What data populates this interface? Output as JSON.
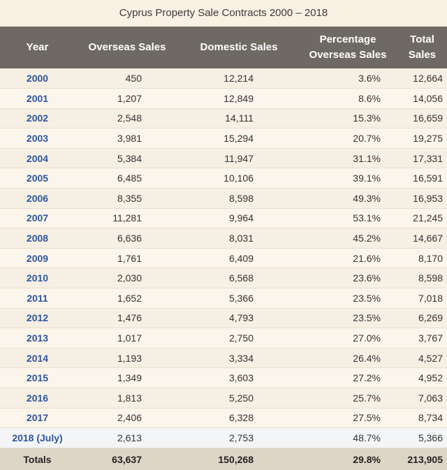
{
  "title": "Cyprus Property Sale Contracts 2000 – 2018",
  "headers": {
    "year": "Year",
    "overseas": "Overseas Sales",
    "domestic": "Domestic Sales",
    "percentage_line1": "Percentage",
    "percentage_line2": "Overseas Sales",
    "total_line1": "Total",
    "total_line2": "Sales"
  },
  "rows": [
    {
      "year": "2000",
      "overseas": "450",
      "domestic": "12,214",
      "percentage": "3.6%",
      "total": "12,664"
    },
    {
      "year": "2001",
      "overseas": "1,207",
      "domestic": "12,849",
      "percentage": "8.6%",
      "total": "14,056"
    },
    {
      "year": "2002",
      "overseas": "2,548",
      "domestic": "14,111",
      "percentage": "15.3%",
      "total": "16,659"
    },
    {
      "year": "2003",
      "overseas": "3,981",
      "domestic": "15,294",
      "percentage": "20.7%",
      "total": "19,275"
    },
    {
      "year": "2004",
      "overseas": "5,384",
      "domestic": "11,947",
      "percentage": "31.1%",
      "total": "17,331"
    },
    {
      "year": "2005",
      "overseas": "6,485",
      "domestic": "10,106",
      "percentage": "39.1%",
      "total": "16,591"
    },
    {
      "year": "2006",
      "overseas": "8,355",
      "domestic": "8,598",
      "percentage": "49.3%",
      "total": "16,953"
    },
    {
      "year": "2007",
      "overseas": "11,281",
      "domestic": "9,964",
      "percentage": "53.1%",
      "total": "21,245"
    },
    {
      "year": "2008",
      "overseas": "6,636",
      "domestic": "8,031",
      "percentage": "45.2%",
      "total": "14,667"
    },
    {
      "year": "2009",
      "overseas": "1,761",
      "domestic": "6,409",
      "percentage": "21.6%",
      "total": "8,170"
    },
    {
      "year": "2010",
      "overseas": "2,030",
      "domestic": "6,568",
      "percentage": "23.6%",
      "total": "8,598"
    },
    {
      "year": "2011",
      "overseas": "1,652",
      "domestic": "5,366",
      "percentage": "23.5%",
      "total": "7,018"
    },
    {
      "year": "2012",
      "overseas": "1,476",
      "domestic": "4,793",
      "percentage": "23.5%",
      "total": "6,269"
    },
    {
      "year": "2013",
      "overseas": "1,017",
      "domestic": "2,750",
      "percentage": "27.0%",
      "total": "3,767"
    },
    {
      "year": "2014",
      "overseas": "1,193",
      "domestic": "3,334",
      "percentage": "26.4%",
      "total": "4,527"
    },
    {
      "year": "2015",
      "overseas": "1,349",
      "domestic": "3,603",
      "percentage": "27.2%",
      "total": "4,952"
    },
    {
      "year": "2016",
      "overseas": "1,813",
      "domestic": "5,250",
      "percentage": "25.7%",
      "total": "7,063"
    },
    {
      "year": "2017",
      "overseas": "2,406",
      "domestic": "6,328",
      "percentage": "27.5%",
      "total": "8,734"
    },
    {
      "year": "2018 (July)",
      "overseas": "2,613",
      "domestic": "2,753",
      "percentage": "48.7%",
      "total": "5,366"
    }
  ],
  "totals": {
    "label": "Totals",
    "overseas": "63,637",
    "domestic": "150,268",
    "percentage": "29.8%",
    "total": "213,905"
  },
  "colors": {
    "header_bg": "#6e6a63",
    "year_text": "#2e5597",
    "totals_bg": "#ddd6c6",
    "page_bg": "#faf0e4"
  }
}
